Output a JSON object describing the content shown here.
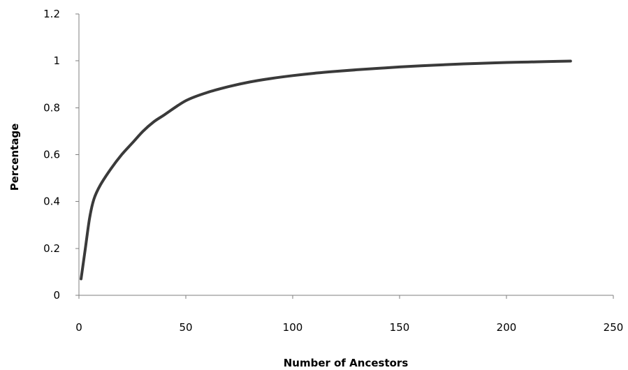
{
  "chart_data": {
    "type": "line",
    "title": "",
    "xlabel": "Number of Ancestors",
    "ylabel": "Percentage",
    "xlim": [
      0,
      250
    ],
    "ylim": [
      0,
      1.2
    ],
    "x_ticks": [
      "0",
      "50",
      "100",
      "150",
      "200",
      "250"
    ],
    "y_ticks": [
      "0",
      "0.2",
      "0.4",
      "0.6",
      "0.8",
      "1",
      "1.2"
    ],
    "grid": false,
    "legend": "none",
    "series": [
      {
        "color": "#3a3a3a",
        "x": [
          1,
          3,
          5,
          7,
          10,
          15,
          20,
          25,
          30,
          35,
          40,
          50,
          60,
          70,
          80,
          90,
          100,
          110,
          120,
          130,
          140,
          150,
          160,
          170,
          180,
          190,
          200,
          210,
          220,
          230
        ],
        "y": [
          0.07,
          0.2,
          0.33,
          0.41,
          0.47,
          0.54,
          0.6,
          0.65,
          0.7,
          0.74,
          0.77,
          0.83,
          0.865,
          0.89,
          0.91,
          0.925,
          0.937,
          0.947,
          0.955,
          0.962,
          0.968,
          0.974,
          0.979,
          0.983,
          0.987,
          0.99,
          0.993,
          0.995,
          0.997,
          0.999
        ]
      }
    ]
  }
}
